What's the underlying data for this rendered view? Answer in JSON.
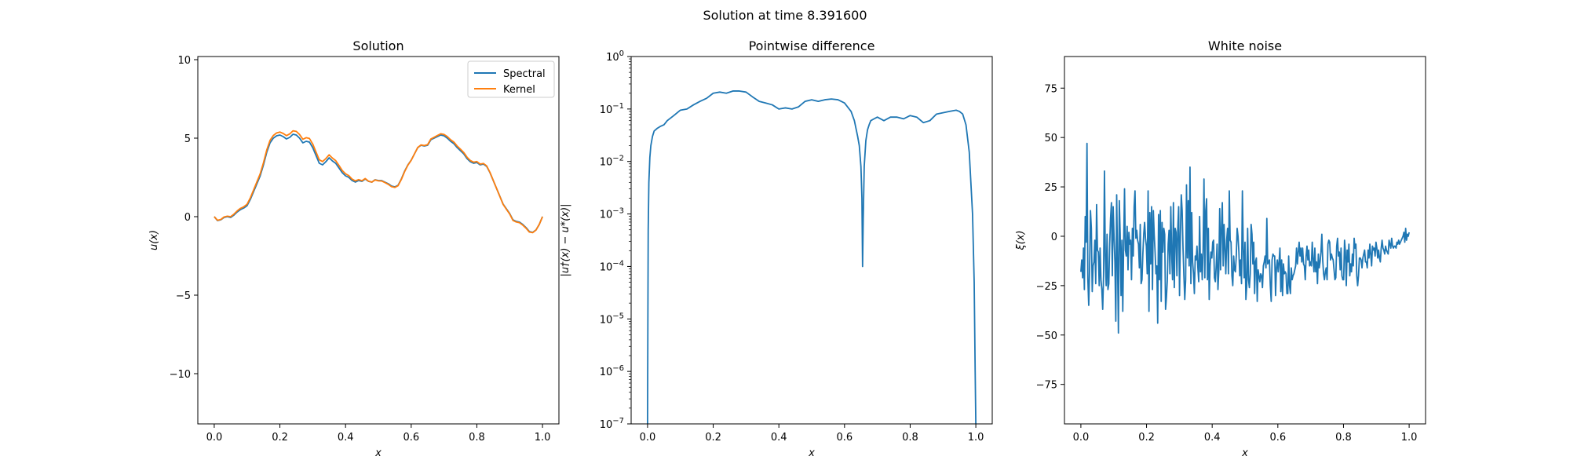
{
  "figure": {
    "suptitle": "Solution at time 8.391600"
  },
  "chart_data": [
    {
      "type": "line",
      "title": "Solution",
      "xlabel": "x",
      "ylabel": "u(x)",
      "xlim": [
        -0.05,
        1.05
      ],
      "ylim": [
        -13.2,
        10.2
      ],
      "xticks": [
        "0.0",
        "0.2",
        "0.4",
        "0.6",
        "0.8",
        "1.0"
      ],
      "yticks": [
        "−10",
        "−5",
        "0",
        "5",
        "10"
      ],
      "grid": false,
      "legend": {
        "placement": "top-right",
        "entries": [
          "Spectral",
          "Kernel"
        ]
      },
      "series": [
        {
          "name": "Spectral",
          "color": "#1f77b4",
          "x": [
            0.0,
            0.01,
            0.02,
            0.03,
            0.04,
            0.05,
            0.06,
            0.07,
            0.08,
            0.09,
            0.1,
            0.11,
            0.12,
            0.13,
            0.14,
            0.15,
            0.16,
            0.17,
            0.18,
            0.19,
            0.2,
            0.21,
            0.22,
            0.23,
            0.24,
            0.25,
            0.26,
            0.27,
            0.28,
            0.29,
            0.3,
            0.31,
            0.32,
            0.33,
            0.34,
            0.35,
            0.36,
            0.37,
            0.38,
            0.39,
            0.4,
            0.41,
            0.42,
            0.43,
            0.44,
            0.45,
            0.46,
            0.47,
            0.48,
            0.49,
            0.5,
            0.51,
            0.52,
            0.53,
            0.54,
            0.55,
            0.56,
            0.57,
            0.58,
            0.59,
            0.6,
            0.61,
            0.62,
            0.63,
            0.64,
            0.65,
            0.66,
            0.67,
            0.68,
            0.69,
            0.7,
            0.71,
            0.72,
            0.73,
            0.74,
            0.75,
            0.76,
            0.77,
            0.78,
            0.79,
            0.8,
            0.81,
            0.82,
            0.83,
            0.84,
            0.85,
            0.86,
            0.87,
            0.88,
            0.89,
            0.9,
            0.91,
            0.92,
            0.93,
            0.94,
            0.95,
            0.96,
            0.97,
            0.98,
            0.99,
            1.0
          ],
          "y": [
            0.0,
            -0.25,
            -0.2,
            -0.05,
            0.0,
            -0.05,
            0.1,
            0.3,
            0.45,
            0.55,
            0.7,
            1.1,
            1.6,
            2.1,
            2.6,
            3.3,
            4.1,
            4.7,
            5.0,
            5.15,
            5.2,
            5.1,
            4.95,
            5.05,
            5.25,
            5.2,
            5.0,
            4.7,
            4.8,
            4.75,
            4.4,
            3.9,
            3.4,
            3.3,
            3.5,
            3.75,
            3.55,
            3.4,
            3.1,
            2.8,
            2.6,
            2.5,
            2.3,
            2.2,
            2.3,
            2.25,
            2.4,
            2.25,
            2.2,
            2.35,
            2.3,
            2.3,
            2.2,
            2.1,
            1.95,
            1.9,
            2.0,
            2.4,
            2.9,
            3.3,
            3.6,
            4.0,
            4.4,
            4.55,
            4.5,
            4.55,
            4.9,
            5.0,
            5.1,
            5.2,
            5.15,
            5.0,
            4.8,
            4.65,
            4.4,
            4.2,
            4.0,
            3.7,
            3.5,
            3.4,
            3.45,
            3.3,
            3.35,
            3.2,
            2.8,
            2.3,
            1.8,
            1.3,
            0.8,
            0.5,
            0.2,
            -0.2,
            -0.3,
            -0.35,
            -0.5,
            -0.7,
            -0.95,
            -1.0,
            -0.85,
            -0.5,
            0.0
          ]
        },
        {
          "name": "Kernel",
          "color": "#ff7f0e",
          "x": [
            0.0,
            0.01,
            0.02,
            0.03,
            0.04,
            0.05,
            0.06,
            0.07,
            0.08,
            0.09,
            0.1,
            0.11,
            0.12,
            0.13,
            0.14,
            0.15,
            0.16,
            0.17,
            0.18,
            0.19,
            0.2,
            0.21,
            0.22,
            0.23,
            0.24,
            0.25,
            0.26,
            0.27,
            0.28,
            0.29,
            0.3,
            0.31,
            0.32,
            0.33,
            0.34,
            0.35,
            0.36,
            0.37,
            0.38,
            0.39,
            0.4,
            0.41,
            0.42,
            0.43,
            0.44,
            0.45,
            0.46,
            0.47,
            0.48,
            0.49,
            0.5,
            0.51,
            0.52,
            0.53,
            0.54,
            0.55,
            0.56,
            0.57,
            0.58,
            0.59,
            0.6,
            0.61,
            0.62,
            0.63,
            0.64,
            0.65,
            0.66,
            0.67,
            0.68,
            0.69,
            0.7,
            0.71,
            0.72,
            0.73,
            0.74,
            0.75,
            0.76,
            0.77,
            0.78,
            0.79,
            0.8,
            0.81,
            0.82,
            0.83,
            0.84,
            0.85,
            0.86,
            0.87,
            0.88,
            0.89,
            0.9,
            0.91,
            0.92,
            0.93,
            0.94,
            0.95,
            0.96,
            0.97,
            0.98,
            0.99,
            1.0
          ],
          "y": [
            0.0,
            -0.23,
            -0.18,
            -0.02,
            0.03,
            0.0,
            0.16,
            0.37,
            0.53,
            0.63,
            0.79,
            1.2,
            1.71,
            2.22,
            2.73,
            3.44,
            4.25,
            4.86,
            5.17,
            5.33,
            5.39,
            5.3,
            5.16,
            5.27,
            5.47,
            5.43,
            5.23,
            4.93,
            5.03,
            4.98,
            4.63,
            4.12,
            3.62,
            3.51,
            3.7,
            3.94,
            3.73,
            3.57,
            3.26,
            2.94,
            2.73,
            2.61,
            2.39,
            2.28,
            2.36,
            2.29,
            2.43,
            2.26,
            2.2,
            2.34,
            2.28,
            2.27,
            2.17,
            2.06,
            1.91,
            1.86,
            1.97,
            2.37,
            2.87,
            3.28,
            3.59,
            4.0,
            4.41,
            4.57,
            4.53,
            4.59,
            4.95,
            5.06,
            5.17,
            5.28,
            5.24,
            5.1,
            4.9,
            4.75,
            4.5,
            4.3,
            4.09,
            3.79,
            3.58,
            3.47,
            3.51,
            3.35,
            3.39,
            3.23,
            2.82,
            2.31,
            1.8,
            1.29,
            0.78,
            0.47,
            0.17,
            -0.24,
            -0.34,
            -0.39,
            -0.54,
            -0.74,
            -0.98,
            -1.02,
            -0.86,
            -0.5,
            0.0
          ]
        }
      ]
    },
    {
      "type": "line",
      "title": "Pointwise difference",
      "xlabel": "x",
      "ylabel": "|u†(x) − u*(x)|",
      "xlim": [
        -0.05,
        1.05
      ],
      "ylim": [
        1e-07,
        1
      ],
      "yscale": "log",
      "xticks": [
        "0.0",
        "0.2",
        "0.4",
        "0.6",
        "0.8",
        "1.0"
      ],
      "yticks": [
        {
          "base": "10",
          "exp": "−7",
          "value": 1e-07
        },
        {
          "base": "10",
          "exp": "−6",
          "value": 1e-06
        },
        {
          "base": "10",
          "exp": "−5",
          "value": 1e-05
        },
        {
          "base": "10",
          "exp": "−4",
          "value": 0.0001
        },
        {
          "base": "10",
          "exp": "−3",
          "value": 0.001
        },
        {
          "base": "10",
          "exp": "−2",
          "value": 0.01
        },
        {
          "base": "10",
          "exp": "−1",
          "value": 0.1
        },
        {
          "base": "10",
          "exp": "0",
          "value": 1
        }
      ],
      "grid": false,
      "series": [
        {
          "color": "#1f77b4",
          "x": [
            0.0,
            0.001,
            0.002,
            0.004,
            0.007,
            0.01,
            0.015,
            0.02,
            0.03,
            0.04,
            0.05,
            0.06,
            0.08,
            0.1,
            0.12,
            0.14,
            0.16,
            0.18,
            0.2,
            0.22,
            0.24,
            0.26,
            0.28,
            0.3,
            0.32,
            0.34,
            0.36,
            0.38,
            0.4,
            0.42,
            0.44,
            0.46,
            0.48,
            0.5,
            0.52,
            0.54,
            0.56,
            0.58,
            0.6,
            0.62,
            0.63,
            0.64,
            0.645,
            0.65,
            0.653,
            0.655,
            0.657,
            0.66,
            0.665,
            0.67,
            0.675,
            0.68,
            0.69,
            0.7,
            0.72,
            0.74,
            0.76,
            0.78,
            0.8,
            0.82,
            0.84,
            0.86,
            0.88,
            0.9,
            0.92,
            0.94,
            0.95,
            0.96,
            0.97,
            0.98,
            0.99,
            0.995,
            0.998,
            1.0
          ],
          "y": [
            1e-07,
            1e-05,
            0.0005,
            0.004,
            0.012,
            0.02,
            0.03,
            0.038,
            0.043,
            0.047,
            0.05,
            0.06,
            0.075,
            0.095,
            0.1,
            0.12,
            0.14,
            0.16,
            0.2,
            0.21,
            0.2,
            0.22,
            0.22,
            0.21,
            0.17,
            0.14,
            0.13,
            0.12,
            0.1,
            0.105,
            0.1,
            0.11,
            0.14,
            0.15,
            0.14,
            0.15,
            0.155,
            0.15,
            0.13,
            0.09,
            0.06,
            0.03,
            0.02,
            0.008,
            0.002,
            0.0001,
            0.0008,
            0.008,
            0.025,
            0.04,
            0.05,
            0.06,
            0.065,
            0.07,
            0.06,
            0.07,
            0.07,
            0.065,
            0.075,
            0.07,
            0.055,
            0.06,
            0.08,
            0.085,
            0.09,
            0.095,
            0.09,
            0.08,
            0.05,
            0.015,
            0.001,
            5e-05,
            1e-06,
            1e-07
          ]
        }
      ]
    },
    {
      "type": "line",
      "title": "White noise",
      "xlabel": "x",
      "ylabel": "ξ(x)",
      "xlim": [
        -0.05,
        1.05
      ],
      "ylim": [
        -95,
        91
      ],
      "xticks": [
        "0.0",
        "0.2",
        "0.4",
        "0.6",
        "0.8",
        "1.0"
      ],
      "yticks": [
        "−75",
        "−50",
        "−25",
        "0",
        "25",
        "50",
        "75"
      ],
      "grid": false,
      "series": [
        {
          "color": "#1f77b4",
          "y": [
            -18,
            -12,
            -21,
            -6,
            -27,
            10,
            -3,
            47,
            -22,
            -35,
            -16,
            13,
            4,
            -28,
            -15,
            -13,
            -2,
            -24,
            16,
            -7,
            -8,
            -25,
            -6,
            -22,
            -27,
            -37,
            -20,
            33,
            -10,
            -25,
            1,
            -27,
            -24,
            -4,
            9,
            17,
            -20,
            15,
            0,
            -13,
            -43,
            21,
            -13,
            -49,
            18,
            1,
            -30,
            -2,
            -38,
            -4,
            24,
            -7,
            -10,
            5,
            -17,
            2,
            -4,
            -2,
            -22,
            4,
            -10,
            15,
            23,
            -1,
            3,
            -2,
            -4,
            -16,
            6,
            -24,
            -22,
            -9,
            1,
            7,
            -1,
            -5,
            -19,
            23,
            -38,
            12,
            -14,
            15,
            -27,
            13,
            1,
            -8,
            -19,
            -15,
            -44,
            11,
            -22,
            13,
            -33,
            7,
            -8,
            4,
            1,
            -37,
            -31,
            -22,
            -4,
            3,
            -19,
            15,
            -9,
            -22,
            17,
            -26,
            4,
            2,
            -20,
            4,
            15,
            -30,
            1,
            21,
            13,
            -6,
            -20,
            -32,
            -22,
            26,
            -11,
            18,
            -15,
            35,
            -24,
            12,
            -13,
            -19,
            -29,
            -10,
            -12,
            -5,
            -16,
            -23,
            10,
            -18,
            -9,
            -22,
            -7,
            29,
            -21,
            13,
            19,
            -22,
            4,
            -32,
            -15,
            -8,
            -11,
            -3,
            -2,
            -21,
            -23,
            -15,
            -4,
            -27,
            -17,
            14,
            -17,
            4,
            17,
            -15,
            6,
            -6,
            -19,
            -2,
            4,
            -19,
            23,
            -2,
            -3,
            -20,
            -25,
            -10,
            -17,
            -18,
            -10,
            4,
            0,
            -8,
            -20,
            -12,
            -24,
            23,
            -6,
            -21,
            -3,
            -32,
            -25,
            4,
            -22,
            -26,
            -19,
            6,
            1,
            -14,
            -3,
            -29,
            -13,
            -11,
            -33,
            -17,
            -20,
            -23,
            -19,
            -20,
            -26,
            -15,
            -13,
            -10,
            -16,
            9,
            -14,
            -13,
            -12,
            -25,
            -33,
            -12,
            -9,
            -10,
            -10,
            -30,
            -16,
            -12,
            -18,
            -13,
            -6,
            -28,
            -12,
            -30,
            -14,
            -19,
            -18,
            -19,
            -29,
            -29,
            -10,
            -25,
            -29,
            -16,
            -22,
            -20,
            -19,
            -17,
            -15,
            -6,
            -14,
            -8,
            -3,
            -10,
            -6,
            -13,
            -6,
            -14,
            -15,
            -22,
            -10,
            -5,
            -12,
            -7,
            -15,
            -13,
            -15,
            -3,
            -12,
            -18,
            -6,
            -18,
            -13,
            -24,
            -9,
            -16,
            -13,
            -8,
            1,
            -12,
            -19,
            -22,
            -18,
            -16,
            -22,
            -4,
            -2,
            -3,
            -12,
            -9,
            -11,
            -12,
            -17,
            -22,
            -21,
            -5,
            -1,
            -10,
            -8,
            -17,
            -6,
            -20,
            -22,
            -22,
            -2,
            -8,
            -25,
            -7,
            -13,
            -4,
            -20,
            -14,
            -18,
            -9,
            -15,
            -1,
            -6,
            -4,
            -20,
            -25,
            -20,
            -11,
            -11,
            -12,
            -16,
            -11,
            -9,
            -7,
            -13,
            -13,
            -16,
            -7,
            -11,
            -4,
            -9,
            -15,
            -5,
            -7,
            -6,
            -10,
            -3,
            -6,
            -11,
            -7,
            -11,
            -13,
            -6,
            -2,
            -6,
            -7,
            -9,
            -5,
            -7,
            -8,
            -9,
            -2,
            -4,
            -6,
            -1,
            -5,
            -6,
            -5,
            -5,
            -6,
            -3,
            -4,
            -2,
            -4,
            -3,
            -2,
            -1,
            0,
            2,
            -3,
            4,
            -2,
            1,
            0,
            2
          ]
        }
      ]
    }
  ]
}
